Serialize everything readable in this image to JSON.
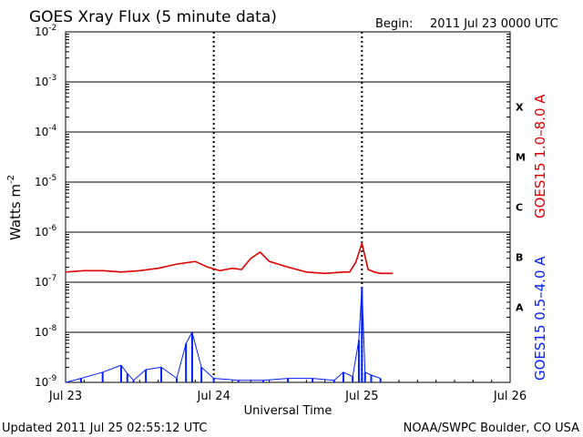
{
  "header": {
    "title": "GOES Xray Flux (5 minute data)",
    "begin_label": "Begin:",
    "begin_value": "2011 Jul 23 0000 UTC"
  },
  "footer": {
    "updated": "Updated 2011 Jul 25 02:55:12 UTC",
    "credit": "NOAA/SWPC Boulder, CO USA"
  },
  "colors": {
    "long_channel": "#e00000",
    "short_channel": "#0020ff",
    "axis": "#000000"
  },
  "chart_data": {
    "type": "line",
    "title": "GOES Xray Flux (5 minute data)",
    "xlabel": "Universal Time",
    "ylabel_base": "Watts m",
    "ylabel_exp": "-2",
    "y_scale": "log",
    "ylim": [
      1e-09,
      0.01
    ],
    "y_ticks": [
      {
        "base": "10",
        "exp": "-2",
        "value": 0.01
      },
      {
        "base": "10",
        "exp": "-3",
        "value": 0.001
      },
      {
        "base": "10",
        "exp": "-4",
        "value": 0.0001
      },
      {
        "base": "10",
        "exp": "-5",
        "value": 1e-05
      },
      {
        "base": "10",
        "exp": "-6",
        "value": 1e-06
      },
      {
        "base": "10",
        "exp": "-7",
        "value": 1e-07
      },
      {
        "base": "10",
        "exp": "-8",
        "value": 1e-08
      },
      {
        "base": "10",
        "exp": "-9",
        "value": 1e-09
      }
    ],
    "xlim": [
      "2011-07-23",
      "2011-07-26"
    ],
    "x_ticks": [
      {
        "label": "Jul 23",
        "date": "2011-07-23"
      },
      {
        "label": "Jul 24",
        "date": "2011-07-24"
      },
      {
        "label": "Jul 25",
        "date": "2011-07-25"
      },
      {
        "label": "Jul 26",
        "date": "2011-07-26"
      }
    ],
    "flare_classes": [
      {
        "label": "X",
        "value": 0.0001
      },
      {
        "label": "M",
        "value": 1e-05
      },
      {
        "label": "C",
        "value": 1e-06
      },
      {
        "label": "B",
        "value": 1e-07
      },
      {
        "label": "A",
        "value": 1e-08
      }
    ],
    "grid": true,
    "series": [
      {
        "name": "GOES15 1.0–8.0 A",
        "color": "#e00000",
        "x": [
          "2011-07-23T00:00",
          "2011-07-23T03:00",
          "2011-07-23T06:00",
          "2011-07-23T09:00",
          "2011-07-23T12:00",
          "2011-07-23T15:00",
          "2011-07-23T18:00",
          "2011-07-23T21:00",
          "2011-07-23T23:00",
          "2011-07-24T01:00",
          "2011-07-24T03:00",
          "2011-07-24T04:30",
          "2011-07-24T06:00",
          "2011-07-24T07:30",
          "2011-07-24T09:00",
          "2011-07-24T12:00",
          "2011-07-24T15:00",
          "2011-07-24T18:00",
          "2011-07-24T21:00",
          "2011-07-24T22:00",
          "2011-07-24T23:00",
          "2011-07-25T00:00",
          "2011-07-25T01:00",
          "2011-07-25T02:00",
          "2011-07-25T03:00",
          "2011-07-25T04:00",
          "2011-07-25T05:00"
        ],
        "y": [
          1.6e-07,
          1.7e-07,
          1.7e-07,
          1.6e-07,
          1.7e-07,
          1.9e-07,
          2.3e-07,
          2.6e-07,
          2e-07,
          1.7e-07,
          1.9e-07,
          1.8e-07,
          3e-07,
          4e-07,
          2.6e-07,
          2e-07,
          1.6e-07,
          1.5e-07,
          1.6e-07,
          1.6e-07,
          2.5e-07,
          6e-07,
          1.8e-07,
          1.6e-07,
          1.5e-07,
          1.5e-07,
          1.5e-07
        ]
      },
      {
        "name": "GOES15 0.5–4.0 A",
        "color": "#0020ff",
        "x": [
          "2011-07-23T00:00",
          "2011-07-23T02:30",
          "2011-07-23T06:00",
          "2011-07-23T09:00",
          "2011-07-23T10:00",
          "2011-07-23T11:00",
          "2011-07-23T13:00",
          "2011-07-23T15:30",
          "2011-07-23T18:00",
          "2011-07-23T19:30",
          "2011-07-23T20:30",
          "2011-07-23T22:00",
          "2011-07-24T00:00",
          "2011-07-24T04:00",
          "2011-07-24T08:00",
          "2011-07-24T12:00",
          "2011-07-24T16:00",
          "2011-07-24T19:30",
          "2011-07-24T21:00",
          "2011-07-24T22:30",
          "2011-07-24T23:30",
          "2011-07-25T00:00",
          "2011-07-25T00:30",
          "2011-07-25T01:30",
          "2011-07-25T03:00"
        ],
        "y": [
          1e-09,
          1.2e-09,
          1.6e-09,
          2.2e-09,
          1.5e-09,
          1.1e-09,
          1.8e-09,
          2e-09,
          1.2e-09,
          6e-09,
          1e-08,
          2e-09,
          1.2e-09,
          1.1e-09,
          1.1e-09,
          1.2e-09,
          1.2e-09,
          1.1e-09,
          1.6e-09,
          1.3e-09,
          7e-09,
          8e-08,
          1.6e-09,
          1.4e-09,
          1.2e-09
        ]
      }
    ]
  }
}
